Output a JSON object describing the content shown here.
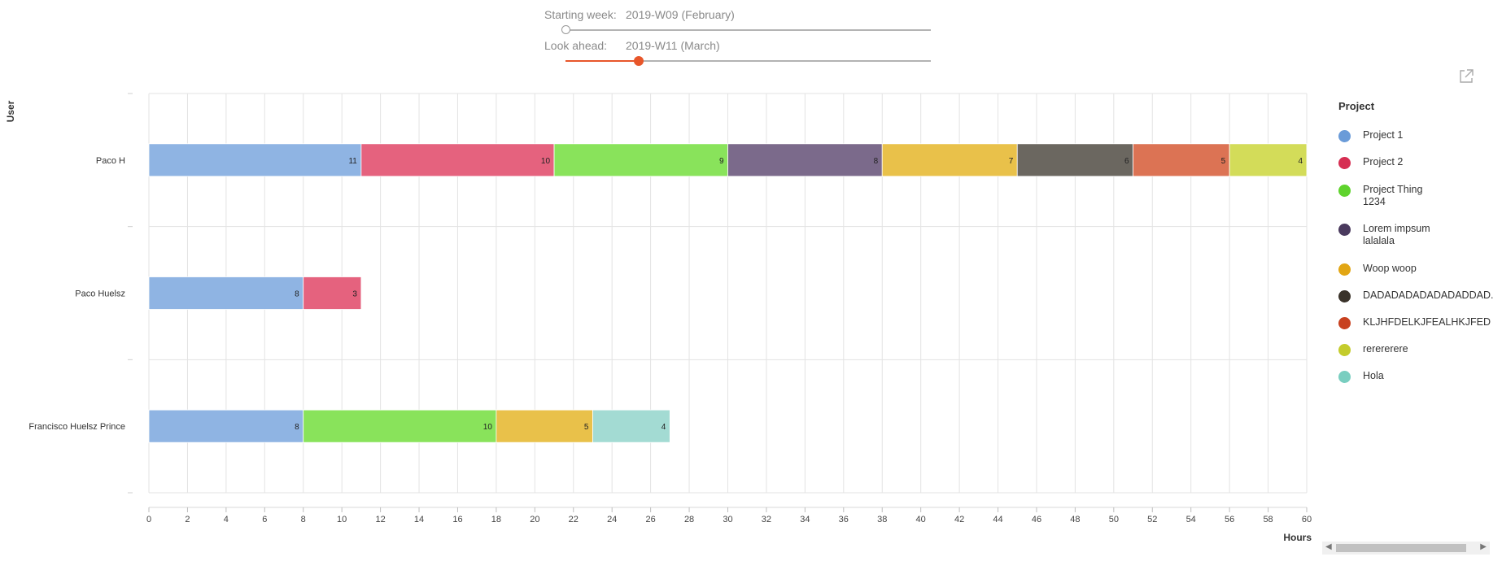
{
  "controls": {
    "starting_week_label": "Starting week:",
    "starting_week_value": "2019-W09 (February)",
    "look_ahead_label": "Look ahead:",
    "look_ahead_value": "2019-W11 (March)",
    "starting_week_position": 0.0,
    "look_ahead_position": 0.2,
    "accent_color": "#e8562a"
  },
  "popout_icon": "external-link-icon",
  "chart_data": {
    "type": "bar",
    "orientation": "horizontal",
    "stacked": true,
    "ylabel": "User",
    "xlabel": "Hours",
    "xlim": [
      0,
      60
    ],
    "xticks": [
      0,
      2,
      4,
      6,
      8,
      10,
      12,
      14,
      16,
      18,
      20,
      22,
      24,
      26,
      28,
      30,
      32,
      34,
      36,
      38,
      40,
      42,
      44,
      46,
      48,
      50,
      52,
      54,
      56,
      58,
      60
    ],
    "grid": true,
    "legend_title": "Project",
    "legend_position": "right",
    "categories": [
      "Paco H",
      "Paco Huelsz",
      "Francisco Huelsz Prince"
    ],
    "series": [
      {
        "name": "Project 1",
        "color": "#8fb4e3",
        "legend_color": "#6a9bd8",
        "values": [
          11,
          8,
          8
        ]
      },
      {
        "name": "Project 2",
        "color": "#e5627e",
        "legend_color": "#d62e52",
        "values": [
          10,
          3,
          null
        ]
      },
      {
        "name": "Project Thing\n1234",
        "color": "#89e35b",
        "legend_color": "#5fd32d",
        "values": [
          9,
          null,
          10
        ]
      },
      {
        "name": "Lorem impsum\nlalalala",
        "color": "#7b6a8b",
        "legend_color": "#4a3a5e",
        "values": [
          8,
          null,
          null
        ]
      },
      {
        "name": "Woop woop",
        "color": "#e9c14a",
        "legend_color": "#e2a614",
        "values": [
          7,
          null,
          5
        ]
      },
      {
        "name": "DADADADADADADADDAD.",
        "color": "#6b6760",
        "legend_color": "#3a332a",
        "values": [
          6,
          null,
          null
        ]
      },
      {
        "name": "KLJHFDELKJFEALHKJFED",
        "color": "#dc7354",
        "legend_color": "#c8411f",
        "values": [
          5,
          null,
          null
        ]
      },
      {
        "name": "rerererere",
        "color": "#d3dc59",
        "legend_color": "#c4cc2c",
        "values": [
          4,
          null,
          null
        ]
      },
      {
        "name": "Hola",
        "color": "#a3dbd3",
        "legend_color": "#79cec0",
        "values": [
          null,
          null,
          4
        ]
      }
    ]
  }
}
